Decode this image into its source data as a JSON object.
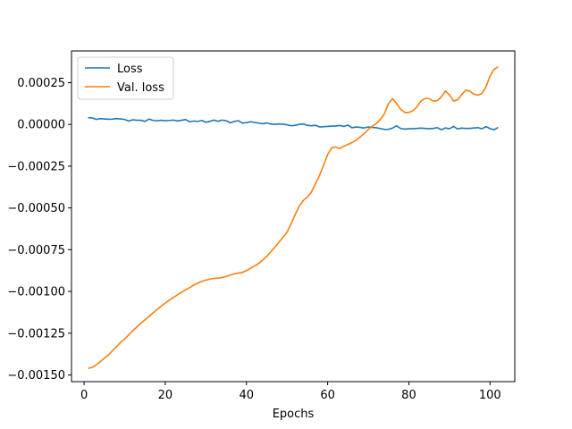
{
  "chart_data": {
    "type": "line",
    "title": "",
    "xlabel": "Epochs",
    "ylabel": "",
    "xlim": [
      -3.1,
      106.1
    ],
    "ylim": [
      -0.00154,
      0.00044
    ],
    "xticks": [
      0,
      20,
      40,
      60,
      80,
      100
    ],
    "xtick_labels": [
      "0",
      "20",
      "40",
      "60",
      "80",
      "100"
    ],
    "yticks": [
      -0.0015,
      -0.00125,
      -0.001,
      -0.00075,
      -0.0005,
      -0.00025,
      0.0,
      0.00025
    ],
    "ytick_labels": [
      "−0.00150",
      "−0.00125",
      "−0.00100",
      "−0.00075",
      "−0.00050",
      "−0.00025",
      "0.00000",
      "0.00025"
    ],
    "grid": false,
    "legend_position": "top-left",
    "colors": {
      "loss": "#1f77b4",
      "val_loss": "#ff7f0e"
    },
    "series": [
      {
        "name": "Loss",
        "x": [
          1,
          2,
          3,
          4,
          5,
          6,
          7,
          8,
          9,
          10,
          11,
          12,
          13,
          14,
          15,
          16,
          17,
          18,
          19,
          20,
          21,
          22,
          23,
          24,
          25,
          26,
          27,
          28,
          29,
          30,
          31,
          32,
          33,
          34,
          35,
          36,
          37,
          38,
          39,
          40,
          41,
          42,
          43,
          44,
          45,
          46,
          47,
          48,
          49,
          50,
          51,
          52,
          53,
          54,
          55,
          56,
          57,
          58,
          59,
          60,
          61,
          62,
          63,
          64,
          65,
          66,
          67,
          68,
          69,
          70,
          71,
          72,
          73,
          74,
          75,
          76,
          77,
          78,
          79,
          80,
          81,
          82,
          83,
          84,
          85,
          86,
          87,
          88,
          89,
          90,
          91,
          92,
          93,
          94,
          95,
          96,
          97,
          98,
          99,
          100,
          101,
          102
        ],
        "y": [
          4e-05,
          3.9e-05,
          3e-05,
          3.5e-05,
          3.3e-05,
          3.1e-05,
          3.2e-05,
          3.5e-05,
          3.3e-05,
          3e-05,
          2e-05,
          2.8e-05,
          2.5e-05,
          2.5e-05,
          1.8e-05,
          3.2e-05,
          2.4e-05,
          2.2e-05,
          2.5e-05,
          2.2e-05,
          2.4e-05,
          2.6e-05,
          2.1e-05,
          2.5e-05,
          2.9e-05,
          1.6e-05,
          2e-05,
          1.8e-05,
          2.4e-05,
          1.3e-05,
          1.9e-05,
          2.6e-05,
          1.9e-05,
          2.6e-05,
          2.2e-05,
          1e-05,
          1.8e-05,
          2.2e-05,
          8e-06,
          1e-05,
          1.6e-05,
          1.2e-05,
          8e-06,
          4e-06,
          9e-06,
          2e-06,
          1e-06,
          3e-06,
          1e-06,
          -2e-06,
          -8e-06,
          -5e-06,
          0.0,
          3e-06,
          -6e-06,
          -8e-06,
          -5e-06,
          -1.5e-05,
          -1.3e-05,
          -1.2e-05,
          -1e-05,
          -1e-05,
          -6e-06,
          -1.2e-05,
          -4e-06,
          -2e-05,
          -1.5e-05,
          -1.8e-05,
          -2.1e-05,
          -1.5e-05,
          -1.8e-05,
          -2e-05,
          -2.5e-05,
          -3e-05,
          -2.9e-05,
          -2.2e-05,
          -8e-06,
          -2.5e-05,
          -2.8e-05,
          -2.6e-05,
          -2.5e-05,
          -2.4e-05,
          -2.2e-05,
          -2.4e-05,
          -2.6e-05,
          -2.4e-05,
          -1.9e-05,
          -3.2e-05,
          -2.1e-05,
          -2.6e-05,
          -1.2e-05,
          -2.7e-05,
          -2.2e-05,
          -2.4e-05,
          -2.4e-05,
          -2.1e-05,
          -1.9e-05,
          -2.6e-05,
          -1.3e-05,
          -2.5e-05,
          -3.2e-05,
          -1.8e-05
        ]
      },
      {
        "name": "Val. loss",
        "x": [
          1,
          2,
          3,
          4,
          5,
          6,
          7,
          8,
          9,
          10,
          11,
          12,
          13,
          14,
          15,
          16,
          17,
          18,
          19,
          20,
          21,
          22,
          23,
          24,
          25,
          26,
          27,
          28,
          29,
          30,
          31,
          32,
          33,
          34,
          35,
          36,
          37,
          38,
          39,
          40,
          41,
          42,
          43,
          44,
          45,
          46,
          47,
          48,
          49,
          50,
          51,
          52,
          53,
          54,
          55,
          56,
          57,
          58,
          59,
          60,
          61,
          62,
          63,
          64,
          65,
          66,
          67,
          68,
          69,
          70,
          71,
          72,
          73,
          74,
          75,
          76,
          77,
          78,
          79,
          80,
          81,
          82,
          83,
          84,
          85,
          86,
          87,
          88,
          89,
          90,
          91,
          92,
          93,
          94,
          95,
          96,
          97,
          98,
          99,
          100,
          101,
          102
        ],
        "y": [
          -0.00146,
          -0.001455,
          -0.00144,
          -0.00142,
          -0.0014,
          -0.00138,
          -0.001355,
          -0.00133,
          -0.001305,
          -0.001285,
          -0.00126,
          -0.001235,
          -0.001213,
          -0.00119,
          -0.00117,
          -0.00115,
          -0.001128,
          -0.001108,
          -0.001088,
          -0.00107,
          -0.001052,
          -0.001036,
          -0.00102,
          -0.001005,
          -0.00099,
          -0.000977,
          -0.000962,
          -0.00095,
          -0.00094,
          -0.000932,
          -0.000926,
          -0.000922,
          -0.00092,
          -0.000917,
          -0.00091,
          -0.000902,
          -0.000895,
          -0.00089,
          -0.000886,
          -0.000875,
          -0.000862,
          -0.000847,
          -0.000833,
          -0.000812,
          -0.00079,
          -0.000762,
          -0.000735,
          -0.000705,
          -0.000675,
          -0.000645,
          -0.000595,
          -0.00054,
          -0.00049,
          -0.000455,
          -0.000435,
          -0.000405,
          -0.000355,
          -0.000305,
          -0.000245,
          -0.00018,
          -0.00014,
          -0.000135,
          -0.000145,
          -0.00013,
          -0.00012,
          -0.000108,
          -9.5e-05,
          -7.5e-05,
          -5.5e-05,
          -3e-05,
          -1e-05,
          5e-06,
          3e-05,
          6.5e-05,
          0.000125,
          0.000155,
          0.000125,
          9e-05,
          7.2e-05,
          7.2e-05,
          8.2e-05,
          0.000105,
          0.00014,
          0.000155,
          0.000155,
          0.00014,
          0.000142,
          0.000165,
          0.0002,
          0.000178,
          0.00014,
          0.000148,
          0.000178,
          0.000205,
          0.0002,
          0.000182,
          0.000175,
          0.000185,
          0.000225,
          0.00029,
          0.00033,
          0.000345
        ]
      }
    ]
  }
}
